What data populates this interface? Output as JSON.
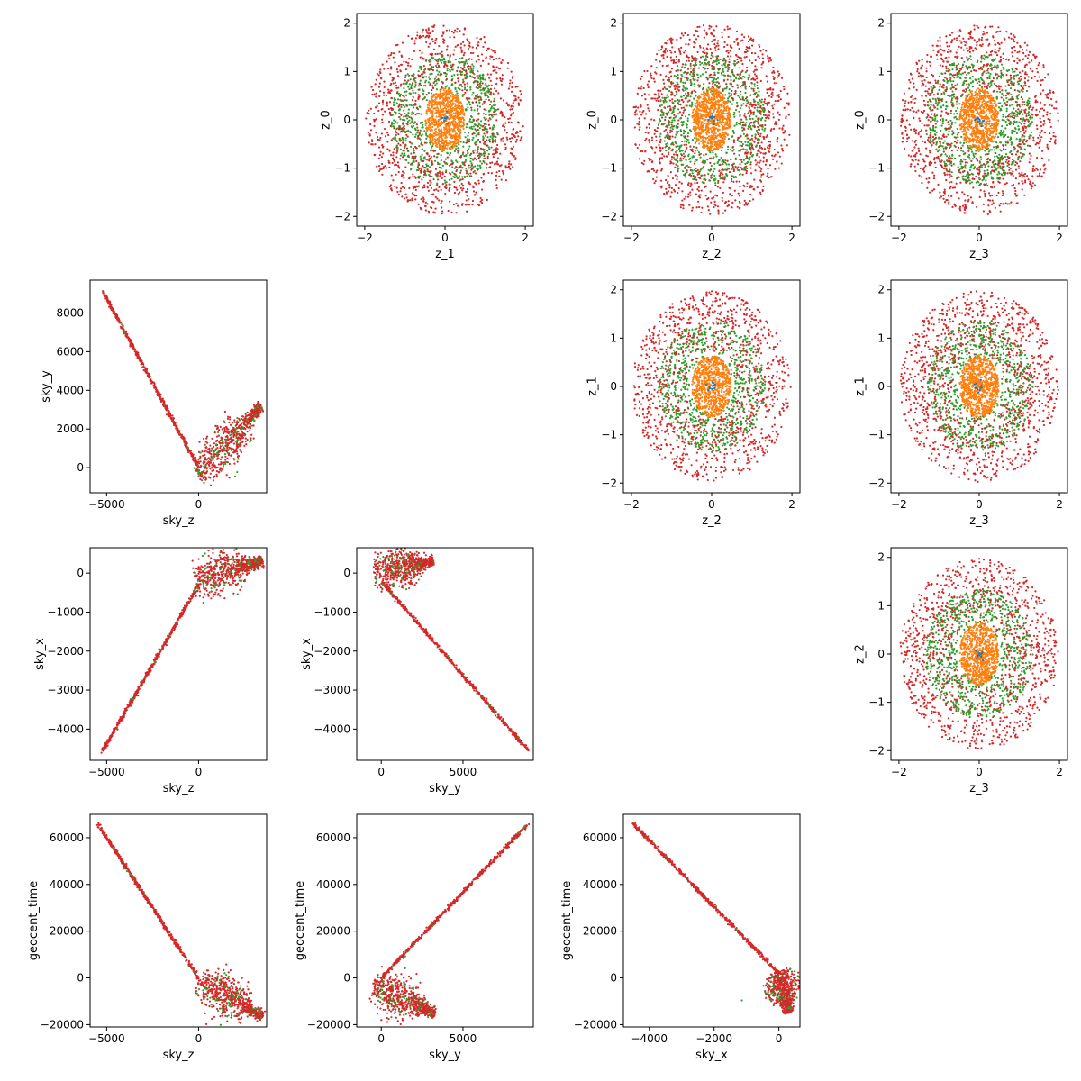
{
  "figure": {
    "background": "#ffffff",
    "series_colors": {
      "outer": "#d62728",
      "middle": "#2ca02c",
      "inner": "#ff7f0e",
      "center": "#1f77b4"
    }
  },
  "chart_data": [
    {
      "type": "scatter",
      "row": 0,
      "col": 1,
      "pattern": "latent",
      "xlabel": "z_1",
      "ylabel": "z_0",
      "xlim": [
        -2.2,
        2.2
      ],
      "ylim": [
        -2.2,
        2.2
      ],
      "xticks": [
        -2,
        0,
        2
      ],
      "yticks": [
        -2,
        -1,
        0,
        1,
        2
      ],
      "grid": false
    },
    {
      "type": "scatter",
      "row": 0,
      "col": 2,
      "pattern": "latent",
      "xlabel": "z_2",
      "ylabel": "z_0",
      "xlim": [
        -2.2,
        2.2
      ],
      "ylim": [
        -2.2,
        2.2
      ],
      "xticks": [
        -2,
        0,
        2
      ],
      "yticks": [
        -2,
        -1,
        0,
        1,
        2
      ],
      "grid": false
    },
    {
      "type": "scatter",
      "row": 0,
      "col": 3,
      "pattern": "latent",
      "xlabel": "z_3",
      "ylabel": "z_0",
      "xlim": [
        -2.2,
        2.2
      ],
      "ylim": [
        -2.2,
        2.2
      ],
      "xticks": [
        -2,
        0,
        2
      ],
      "yticks": [
        -2,
        -1,
        0,
        1,
        2
      ],
      "grid": false
    },
    {
      "type": "scatter",
      "row": 1,
      "col": 0,
      "pattern": "vshape",
      "xlabel": "sky_z",
      "ylabel": "sky_y",
      "xlim": [
        -5900,
        3700
      ],
      "ylim": [
        -1300,
        9700
      ],
      "xticks": [
        -5000,
        0
      ],
      "yticks": [
        0,
        2000,
        4000,
        6000,
        8000
      ],
      "grid": false,
      "line_arm": {
        "from": [
          -5200,
          9100
        ],
        "to": [
          0,
          0
        ]
      },
      "cluster_arm": {
        "from": [
          0,
          -500
        ],
        "to": [
          3400,
          3200
        ],
        "spread": 700
      }
    },
    {
      "type": "scatter",
      "row": 1,
      "col": 2,
      "pattern": "latent",
      "xlabel": "z_2",
      "ylabel": "z_1",
      "xlim": [
        -2.2,
        2.2
      ],
      "ylim": [
        -2.2,
        2.2
      ],
      "xticks": [
        -2,
        0,
        2
      ],
      "yticks": [
        -2,
        -1,
        0,
        1,
        2
      ],
      "grid": false
    },
    {
      "type": "scatter",
      "row": 1,
      "col": 3,
      "pattern": "latent",
      "xlabel": "z_3",
      "ylabel": "z_1",
      "xlim": [
        -2.2,
        2.2
      ],
      "ylim": [
        -2.2,
        2.2
      ],
      "xticks": [
        -2,
        0,
        2
      ],
      "yticks": [
        -2,
        -1,
        0,
        1,
        2
      ],
      "grid": false
    },
    {
      "type": "scatter",
      "row": 2,
      "col": 0,
      "pattern": "vshape",
      "xlabel": "sky_z",
      "ylabel": "sky_x",
      "xlim": [
        -5900,
        3700
      ],
      "ylim": [
        -4800,
        650
      ],
      "xticks": [
        -5000,
        0
      ],
      "yticks": [
        -4000,
        -3000,
        -2000,
        -1000,
        0
      ],
      "grid": false,
      "line_arm": {
        "from": [
          -5200,
          -4550
        ],
        "to": [
          0,
          -300
        ]
      },
      "cluster_arm": {
        "from": [
          -300,
          -200
        ],
        "to": [
          3500,
          300
        ],
        "spread": 180
      }
    },
    {
      "type": "scatter",
      "row": 2,
      "col": 1,
      "pattern": "vshape",
      "xlabel": "sky_y",
      "ylabel": "sky_x",
      "xlim": [
        -1500,
        9300
      ],
      "ylim": [
        -4800,
        650
      ],
      "xticks": [
        0,
        5000
      ],
      "yticks": [
        -4000,
        -3000,
        -2000,
        -1000,
        0
      ],
      "grid": false,
      "line_arm": {
        "from": [
          0,
          -200
        ],
        "to": [
          9000,
          -4550
        ]
      },
      "cluster_arm": {
        "from": [
          -500,
          0
        ],
        "to": [
          3200,
          300
        ],
        "spread": 180
      }
    },
    {
      "type": "scatter",
      "row": 2,
      "col": 3,
      "pattern": "latent",
      "xlabel": "z_3",
      "ylabel": "z_2",
      "xlim": [
        -2.2,
        2.2
      ],
      "ylim": [
        -2.2,
        2.2
      ],
      "xticks": [
        -2,
        0,
        2
      ],
      "yticks": [
        -2,
        -1,
        0,
        1,
        2
      ],
      "grid": false
    },
    {
      "type": "scatter",
      "row": 3,
      "col": 0,
      "pattern": "vshape",
      "xlabel": "sky_z",
      "ylabel": "geocent_time",
      "xlim": [
        -5900,
        3700
      ],
      "ylim": [
        -21000,
        70000
      ],
      "xticks": [
        -5000,
        0
      ],
      "yticks": [
        -20000,
        0,
        20000,
        40000,
        60000
      ],
      "grid": false,
      "line_arm": {
        "from": [
          -5500,
          66000
        ],
        "to": [
          0,
          0
        ]
      },
      "cluster_arm": {
        "from": [
          0,
          -1000
        ],
        "to": [
          3500,
          -16500
        ],
        "spread": 700
      }
    },
    {
      "type": "scatter",
      "row": 3,
      "col": 1,
      "pattern": "vshape",
      "xlabel": "sky_y",
      "ylabel": "geocent_time",
      "xlim": [
        -1500,
        9300
      ],
      "ylim": [
        -21000,
        70000
      ],
      "xticks": [
        0,
        5000
      ],
      "yticks": [
        -20000,
        0,
        20000,
        40000,
        60000
      ],
      "grid": false,
      "line_arm": {
        "from": [
          0,
          0
        ],
        "to": [
          9000,
          66000
        ]
      },
      "cluster_arm": {
        "from": [
          -500,
          -2500
        ],
        "to": [
          3300,
          -15500
        ],
        "spread": 2800
      }
    },
    {
      "type": "scatter",
      "row": 3,
      "col": 2,
      "pattern": "vshape",
      "xlabel": "sky_x",
      "ylabel": "geocent_time",
      "xlim": [
        -4800,
        650
      ],
      "ylim": [
        -21000,
        70000
      ],
      "xticks": [
        -4000,
        -2000,
        0
      ],
      "yticks": [
        -20000,
        0,
        20000,
        40000,
        60000
      ],
      "grid": false,
      "line_arm": {
        "from": [
          -4500,
          66000
        ],
        "to": [
          0,
          2000
        ]
      },
      "cluster_arm": {
        "from": [
          0,
          3000
        ],
        "to": [
          300,
          -15000
        ],
        "spread": 280
      }
    }
  ]
}
